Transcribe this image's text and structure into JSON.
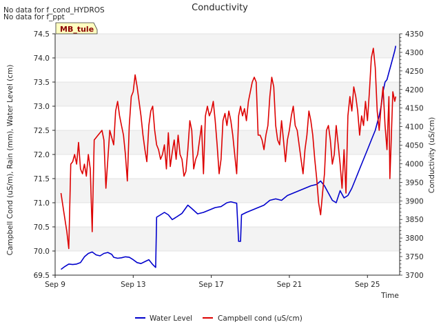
{
  "notes": [
    "No data for f_cond_HYDROS",
    "No data for f_ppt"
  ],
  "chart_data": {
    "type": "line",
    "title": "Conductivity",
    "xlabel": "Time",
    "ylabel_left": "Campbell Cond (uS/m), Rain (mm), Water Level (cm)",
    "ylabel_right": "Conductivity (uS/cm)",
    "site_badge": "MB_tule",
    "x_range_days": [
      9.0,
      26.65
    ],
    "y_left_range": [
      69.5,
      74.5
    ],
    "y_right_range": [
      3700,
      4350
    ],
    "x_ticks": [
      {
        "day": 9,
        "label": "Sep 9"
      },
      {
        "day": 13,
        "label": "Sep 13"
      },
      {
        "day": 17,
        "label": "Sep 17"
      },
      {
        "day": 21,
        "label": "Sep 21"
      },
      {
        "day": 25,
        "label": "Sep 25"
      }
    ],
    "y_left_ticks": [
      "69.5",
      "70.0",
      "70.5",
      "71.0",
      "71.5",
      "72.0",
      "72.5",
      "73.0",
      "73.5",
      "74.0",
      "74.5"
    ],
    "y_right_ticks": [
      "3700",
      "3750",
      "3800",
      "3850",
      "3900",
      "3950",
      "4000",
      "4050",
      "4100",
      "4150",
      "4200",
      "4250",
      "4300",
      "4350"
    ],
    "series": [
      {
        "name": "Water Level",
        "axis": "left",
        "color": "#0000cc",
        "points": [
          [
            9.3,
            69.62
          ],
          [
            9.5,
            69.68
          ],
          [
            9.7,
            69.73
          ],
          [
            9.9,
            69.72
          ],
          [
            10.1,
            69.73
          ],
          [
            10.3,
            69.76
          ],
          [
            10.5,
            69.88
          ],
          [
            10.7,
            69.95
          ],
          [
            10.9,
            69.98
          ],
          [
            11.1,
            69.92
          ],
          [
            11.3,
            69.9
          ],
          [
            11.5,
            69.95
          ],
          [
            11.7,
            69.97
          ],
          [
            11.9,
            69.93
          ],
          [
            12.0,
            69.87
          ],
          [
            12.2,
            69.85
          ],
          [
            12.4,
            69.86
          ],
          [
            12.6,
            69.88
          ],
          [
            12.8,
            69.87
          ],
          [
            13.0,
            69.82
          ],
          [
            13.2,
            69.76
          ],
          [
            13.4,
            69.74
          ],
          [
            13.6,
            69.78
          ],
          [
            13.8,
            69.82
          ],
          [
            14.0,
            69.72
          ],
          [
            14.15,
            69.66
          ],
          [
            14.2,
            70.7
          ],
          [
            14.4,
            70.75
          ],
          [
            14.6,
            70.8
          ],
          [
            14.8,
            70.75
          ],
          [
            15.0,
            70.65
          ],
          [
            15.2,
            70.7
          ],
          [
            15.5,
            70.78
          ],
          [
            15.8,
            70.95
          ],
          [
            16.0,
            70.88
          ],
          [
            16.3,
            70.77
          ],
          [
            16.6,
            70.8
          ],
          [
            16.9,
            70.85
          ],
          [
            17.2,
            70.9
          ],
          [
            17.5,
            70.92
          ],
          [
            17.8,
            71.0
          ],
          [
            18.0,
            71.02
          ],
          [
            18.2,
            71.0
          ],
          [
            18.3,
            70.99
          ],
          [
            18.4,
            70.2
          ],
          [
            18.5,
            70.2
          ],
          [
            18.55,
            70.75
          ],
          [
            18.8,
            70.8
          ],
          [
            19.1,
            70.85
          ],
          [
            19.4,
            70.9
          ],
          [
            19.7,
            70.95
          ],
          [
            20.0,
            71.05
          ],
          [
            20.3,
            71.08
          ],
          [
            20.6,
            71.05
          ],
          [
            20.9,
            71.15
          ],
          [
            21.2,
            71.2
          ],
          [
            21.5,
            71.25
          ],
          [
            21.8,
            71.3
          ],
          [
            22.1,
            71.35
          ],
          [
            22.4,
            71.38
          ],
          [
            22.6,
            71.45
          ],
          [
            22.8,
            71.35
          ],
          [
            23.0,
            71.2
          ],
          [
            23.2,
            71.05
          ],
          [
            23.4,
            71.0
          ],
          [
            23.6,
            71.25
          ],
          [
            23.8,
            71.1
          ],
          [
            24.0,
            71.15
          ],
          [
            24.2,
            71.3
          ],
          [
            24.4,
            71.5
          ],
          [
            24.6,
            71.7
          ],
          [
            24.8,
            71.9
          ],
          [
            25.0,
            72.1
          ],
          [
            25.2,
            72.3
          ],
          [
            25.4,
            72.5
          ],
          [
            25.5,
            72.65
          ],
          [
            25.6,
            72.8
          ],
          [
            25.7,
            73.0
          ],
          [
            25.8,
            73.3
          ],
          [
            25.9,
            73.5
          ],
          [
            26.0,
            73.55
          ],
          [
            26.1,
            73.7
          ],
          [
            26.2,
            73.85
          ],
          [
            26.3,
            74.0
          ],
          [
            26.4,
            74.15
          ],
          [
            26.45,
            74.25
          ]
        ]
      },
      {
        "name": "Campbell cond (uS/cm)",
        "axis": "left",
        "color": "#dd0000",
        "points": [
          [
            9.3,
            71.2
          ],
          [
            9.45,
            70.8
          ],
          [
            9.6,
            70.4
          ],
          [
            9.7,
            70.05
          ],
          [
            9.8,
            71.8
          ],
          [
            9.9,
            71.85
          ],
          [
            10.0,
            72.0
          ],
          [
            10.1,
            71.8
          ],
          [
            10.2,
            72.25
          ],
          [
            10.3,
            71.7
          ],
          [
            10.4,
            71.6
          ],
          [
            10.5,
            71.8
          ],
          [
            10.6,
            71.55
          ],
          [
            10.7,
            72.0
          ],
          [
            10.8,
            71.7
          ],
          [
            10.9,
            70.4
          ],
          [
            11.0,
            72.3
          ],
          [
            11.2,
            72.4
          ],
          [
            11.4,
            72.5
          ],
          [
            11.5,
            72.3
          ],
          [
            11.6,
            71.3
          ],
          [
            11.8,
            72.5
          ],
          [
            12.0,
            72.2
          ],
          [
            12.1,
            72.9
          ],
          [
            12.2,
            73.1
          ],
          [
            12.3,
            72.8
          ],
          [
            12.4,
            72.6
          ],
          [
            12.5,
            72.4
          ],
          [
            12.6,
            72.0
          ],
          [
            12.7,
            71.45
          ],
          [
            12.8,
            72.6
          ],
          [
            12.9,
            73.2
          ],
          [
            13.0,
            73.3
          ],
          [
            13.1,
            73.65
          ],
          [
            13.2,
            73.4
          ],
          [
            13.3,
            73.1
          ],
          [
            13.4,
            72.8
          ],
          [
            13.5,
            72.4
          ],
          [
            13.6,
            72.1
          ],
          [
            13.7,
            71.85
          ],
          [
            13.8,
            72.6
          ],
          [
            13.9,
            72.9
          ],
          [
            14.0,
            73.0
          ],
          [
            14.1,
            72.5
          ],
          [
            14.2,
            72.2
          ],
          [
            14.3,
            72.1
          ],
          [
            14.4,
            71.9
          ],
          [
            14.5,
            72.0
          ],
          [
            14.6,
            72.2
          ],
          [
            14.7,
            71.7
          ],
          [
            14.8,
            72.45
          ],
          [
            14.9,
            71.75
          ],
          [
            15.0,
            72.05
          ],
          [
            15.1,
            72.3
          ],
          [
            15.2,
            71.9
          ],
          [
            15.3,
            72.4
          ],
          [
            15.4,
            72.0
          ],
          [
            15.5,
            71.9
          ],
          [
            15.6,
            71.55
          ],
          [
            15.7,
            71.65
          ],
          [
            15.8,
            72.1
          ],
          [
            15.9,
            72.7
          ],
          [
            16.0,
            72.5
          ],
          [
            16.1,
            71.7
          ],
          [
            16.2,
            71.9
          ],
          [
            16.3,
            72.0
          ],
          [
            16.4,
            72.3
          ],
          [
            16.5,
            72.6
          ],
          [
            16.6,
            71.6
          ],
          [
            16.7,
            72.8
          ],
          [
            16.8,
            73.0
          ],
          [
            16.9,
            72.8
          ],
          [
            17.0,
            72.9
          ],
          [
            17.1,
            73.1
          ],
          [
            17.2,
            72.7
          ],
          [
            17.3,
            72.2
          ],
          [
            17.4,
            71.6
          ],
          [
            17.5,
            71.9
          ],
          [
            17.6,
            72.7
          ],
          [
            17.7,
            72.85
          ],
          [
            17.8,
            72.6
          ],
          [
            17.9,
            72.9
          ],
          [
            18.0,
            72.7
          ],
          [
            18.1,
            72.4
          ],
          [
            18.2,
            72.0
          ],
          [
            18.3,
            71.6
          ],
          [
            18.4,
            72.8
          ],
          [
            18.5,
            73.0
          ],
          [
            18.6,
            72.8
          ],
          [
            18.7,
            72.95
          ],
          [
            18.8,
            72.7
          ],
          [
            18.9,
            73.1
          ],
          [
            19.0,
            73.3
          ],
          [
            19.1,
            73.5
          ],
          [
            19.2,
            73.6
          ],
          [
            19.3,
            73.5
          ],
          [
            19.4,
            72.4
          ],
          [
            19.5,
            72.4
          ],
          [
            19.6,
            72.3
          ],
          [
            19.7,
            72.1
          ],
          [
            19.8,
            72.4
          ],
          [
            19.9,
            72.6
          ],
          [
            20.0,
            73.2
          ],
          [
            20.1,
            73.6
          ],
          [
            20.2,
            73.4
          ],
          [
            20.3,
            72.6
          ],
          [
            20.4,
            72.3
          ],
          [
            20.5,
            72.2
          ],
          [
            20.6,
            72.7
          ],
          [
            20.7,
            72.3
          ],
          [
            20.8,
            71.85
          ],
          [
            20.9,
            72.3
          ],
          [
            21.0,
            72.5
          ],
          [
            21.1,
            72.8
          ],
          [
            21.2,
            73.0
          ],
          [
            21.3,
            72.6
          ],
          [
            21.4,
            72.5
          ],
          [
            21.5,
            72.2
          ],
          [
            21.6,
            71.9
          ],
          [
            21.7,
            71.6
          ],
          [
            21.8,
            72.1
          ],
          [
            21.9,
            72.4
          ],
          [
            22.0,
            72.9
          ],
          [
            22.1,
            72.7
          ],
          [
            22.2,
            72.4
          ],
          [
            22.3,
            71.9
          ],
          [
            22.4,
            71.5
          ],
          [
            22.5,
            71.0
          ],
          [
            22.6,
            70.75
          ],
          [
            22.7,
            71.2
          ],
          [
            22.8,
            71.6
          ],
          [
            22.9,
            72.5
          ],
          [
            23.0,
            72.6
          ],
          [
            23.1,
            72.3
          ],
          [
            23.2,
            71.8
          ],
          [
            23.3,
            72.0
          ],
          [
            23.4,
            72.6
          ],
          [
            23.5,
            72.2
          ],
          [
            23.6,
            71.8
          ],
          [
            23.7,
            71.3
          ],
          [
            23.8,
            72.1
          ],
          [
            23.9,
            71.2
          ],
          [
            24.0,
            72.8
          ],
          [
            24.1,
            73.2
          ],
          [
            24.2,
            72.9
          ],
          [
            24.3,
            73.4
          ],
          [
            24.4,
            73.2
          ],
          [
            24.5,
            72.9
          ],
          [
            24.6,
            72.4
          ],
          [
            24.7,
            72.8
          ],
          [
            24.8,
            72.6
          ],
          [
            24.9,
            73.1
          ],
          [
            25.0,
            72.7
          ],
          [
            25.1,
            73.3
          ],
          [
            25.2,
            74.0
          ],
          [
            25.3,
            74.2
          ],
          [
            25.4,
            73.8
          ],
          [
            25.5,
            72.9
          ],
          [
            25.6,
            72.5
          ],
          [
            25.7,
            73.0
          ],
          [
            25.8,
            73.4
          ],
          [
            25.9,
            72.6
          ],
          [
            26.0,
            72.1
          ],
          [
            26.1,
            73.2
          ],
          [
            26.15,
            71.5
          ],
          [
            26.2,
            72.1
          ],
          [
            26.3,
            73.3
          ],
          [
            26.4,
            73.1
          ],
          [
            26.45,
            73.2
          ]
        ]
      }
    ]
  }
}
